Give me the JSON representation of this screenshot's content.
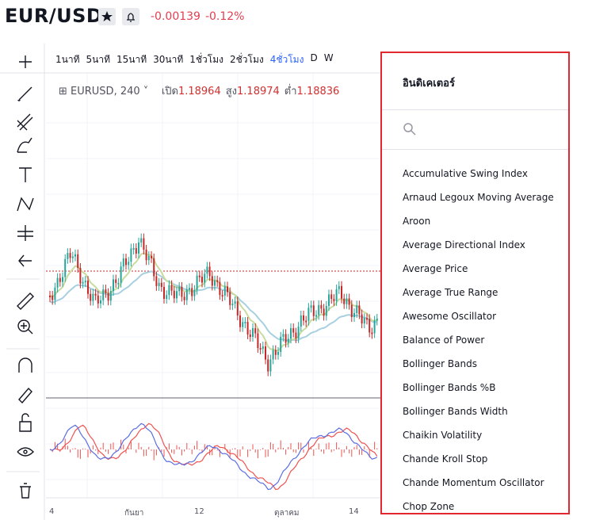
{
  "header": {
    "symbol": "EUR/USD",
    "change": -0.00139,
    "change_percent": "-0.12%"
  },
  "timeframes": [
    {
      "label": "1นาที",
      "selected": false
    },
    {
      "label": "5นาที",
      "selected": false
    },
    {
      "label": "15นาที",
      "selected": false
    },
    {
      "label": "30นาที",
      "selected": false
    },
    {
      "label": "1ชั่วโมง",
      "selected": false
    },
    {
      "label": "2ชั่วโมง",
      "selected": false
    },
    {
      "label": "4ชั่วโมง",
      "selected": true
    },
    {
      "label": "D",
      "selected": false
    },
    {
      "label": "W",
      "selected": false
    }
  ],
  "legend": {
    "symbol_interval": "EURUSD, 240",
    "open_label": "เปิด",
    "open": 1.18964,
    "high_label": "สูง",
    "high": 1.18974,
    "low_label": "ต่ำ",
    "low": 1.18836
  },
  "x_axis": {
    "labels": [
      "4",
      "กันยา",
      "12",
      "ตุลาคม",
      "14"
    ]
  },
  "indicator_panel": {
    "title": "อินดิเคเตอร์",
    "items": [
      "Accumulative Swing Index",
      "Arnaud Legoux Moving Average",
      "Aroon",
      "Average Directional Index",
      "Average Price",
      "Average True Range",
      "Awesome Oscillator",
      "Balance of Power",
      "Bollinger Bands",
      "Bollinger Bands %B",
      "Bollinger Bands Width",
      "Chaikin Volatility",
      "Chande Kroll Stop",
      "Chande Momentum Oscillator",
      "Chop Zone"
    ]
  }
}
